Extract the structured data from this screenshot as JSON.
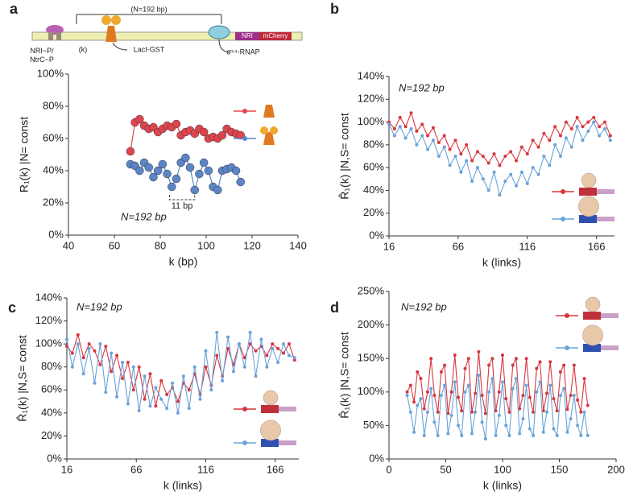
{
  "diagram": {
    "spacing": "(N=192 bp)",
    "activator": "NRI~P/\nNtrC~P",
    "offset": "(k)",
    "repressor": "LacI-GST",
    "polymerase": "σ⁵⁴-RNAP",
    "gene1": "NRI",
    "gene2": "mCherry"
  },
  "chart_data": [
    {
      "type": "line",
      "panel_label": "a",
      "y_label": "R₁(k) |N= const",
      "x_label": "k (bp)",
      "annotation": "N=192 bp",
      "bracket_label": "11 bp",
      "x": [
        67,
        69,
        71,
        73,
        75,
        77,
        79,
        81,
        83,
        85,
        87,
        89,
        91,
        93,
        95,
        97,
        99,
        101,
        103,
        105,
        107,
        109,
        111,
        113,
        115
      ],
      "series": [
        {
          "color": "#e0454b",
          "values": [
            52,
            70,
            72,
            68,
            66,
            67,
            64,
            66,
            68,
            67,
            69,
            62,
            64,
            65,
            63,
            66,
            64,
            60,
            61,
            60,
            62,
            66,
            64,
            63,
            62
          ]
        },
        {
          "color": "#5b85c4",
          "values": [
            44,
            43,
            40,
            45,
            42,
            36,
            40,
            44,
            38,
            30,
            35,
            45,
            48,
            42,
            28,
            38,
            45,
            40,
            30,
            28,
            40,
            41,
            42,
            40,
            33
          ]
        }
      ],
      "xlim": [
        40,
        140
      ],
      "xticks": [
        40,
        60,
        80,
        100,
        120,
        140
      ],
      "ylim": [
        0,
        100
      ],
      "yticks": [
        {
          "value": 0,
          "label": "0%"
        },
        {
          "value": 20,
          "label": "20%"
        },
        {
          "value": 40,
          "label": "40%"
        },
        {
          "value": 60,
          "label": "60%"
        },
        {
          "value": 80,
          "label": "80%"
        },
        {
          "value": 100,
          "label": "100%"
        }
      ]
    },
    {
      "type": "line",
      "panel_label": "b",
      "y_label": "R̂₁(k) |N,S= const",
      "x_label": "k (links)",
      "annotation": "N=192 bp",
      "x": [
        16,
        20,
        24,
        28,
        32,
        36,
        40,
        44,
        48,
        52,
        56,
        60,
        64,
        68,
        72,
        76,
        80,
        84,
        88,
        92,
        96,
        100,
        104,
        108,
        112,
        116,
        120,
        124,
        128,
        132,
        136,
        140,
        144,
        148,
        152,
        156,
        160,
        164,
        168,
        172,
        176
      ],
      "series": [
        {
          "color": "#d9363e",
          "values": [
            100,
            94,
            104,
            96,
            108,
            92,
            98,
            88,
            95,
            82,
            88,
            76,
            84,
            72,
            80,
            66,
            74,
            70,
            64,
            72,
            62,
            70,
            74,
            66,
            78,
            72,
            84,
            78,
            90,
            84,
            96,
            88,
            100,
            94,
            104,
            96,
            100,
            104,
            96,
            100,
            88
          ]
        },
        {
          "color": "#6aa3d8",
          "values": [
            98,
            88,
            96,
            86,
            94,
            80,
            88,
            76,
            84,
            70,
            78,
            62,
            70,
            56,
            66,
            48,
            60,
            50,
            40,
            56,
            36,
            48,
            54,
            44,
            56,
            46,
            60,
            54,
            70,
            62,
            80,
            70,
            86,
            78,
            96,
            84,
            92,
            100,
            88,
            94,
            84
          ]
        }
      ],
      "xlim": [
        16,
        179
      ],
      "xticks": [
        16,
        66,
        116,
        166
      ],
      "ylim": [
        0,
        140
      ],
      "yticks": [
        {
          "value": 0,
          "label": "0%"
        },
        {
          "value": 20,
          "label": "20%"
        },
        {
          "value": 40,
          "label": "40%"
        },
        {
          "value": 60,
          "label": "60%"
        },
        {
          "value": 80,
          "label": "80%"
        },
        {
          "value": 100,
          "label": "100%"
        },
        {
          "value": 120,
          "label": "120%"
        },
        {
          "value": 140,
          "label": "140%"
        }
      ]
    },
    {
      "type": "line",
      "panel_label": "c",
      "y_label": "R̂₁(k) |N,S= const",
      "x_label": "k (links)",
      "annotation": "N=192 bp",
      "x": [
        16,
        20,
        24,
        28,
        32,
        36,
        40,
        44,
        48,
        52,
        56,
        60,
        64,
        68,
        72,
        76,
        80,
        84,
        88,
        92,
        96,
        100,
        104,
        108,
        112,
        116,
        120,
        124,
        128,
        132,
        136,
        140,
        144,
        148,
        152,
        156,
        160,
        164,
        168,
        172,
        176,
        180
      ],
      "series": [
        {
          "color": "#d9363e",
          "values": [
            98,
            92,
            108,
            88,
            100,
            94,
            82,
            98,
            76,
            90,
            70,
            84,
            60,
            80,
            52,
            74,
            46,
            68,
            56,
            62,
            50,
            66,
            60,
            74,
            56,
            80,
            64,
            90,
            72,
            96,
            82,
            100,
            88,
            100,
            94,
            98,
            90,
            100,
            96,
            92,
            100,
            86
          ]
        },
        {
          "color": "#6aa3d8",
          "values": [
            104,
            80,
            100,
            74,
            96,
            66,
            100,
            58,
            92,
            54,
            84,
            48,
            80,
            42,
            72,
            46,
            62,
            52,
            44,
            66,
            40,
            72,
            44,
            80,
            52,
            94,
            60,
            110,
            68,
            106,
            76,
            100,
            80,
            110,
            72,
            104,
            80,
            96,
            84,
            100,
            90,
            88
          ]
        }
      ],
      "xlim": [
        16,
        183
      ],
      "xticks": [
        16,
        66,
        116,
        166
      ],
      "ylim": [
        0,
        140
      ],
      "yticks": [
        {
          "value": 0,
          "label": "0%"
        },
        {
          "value": 20,
          "label": "20%"
        },
        {
          "value": 40,
          "label": "40%"
        },
        {
          "value": 60,
          "label": "60%"
        },
        {
          "value": 80,
          "label": "80%"
        },
        {
          "value": 100,
          "label": "100%"
        },
        {
          "value": 120,
          "label": "120%"
        },
        {
          "value": 140,
          "label": "140%"
        }
      ]
    },
    {
      "type": "line",
      "panel_label": "d",
      "y_label": "R̂₁(k) |N,S= const",
      "x_label": "k (links)",
      "annotation": "N=192 bp",
      "x": [
        16,
        19,
        22,
        25,
        28,
        31,
        34,
        37,
        40,
        43,
        46,
        49,
        52,
        55,
        58,
        61,
        64,
        67,
        70,
        73,
        76,
        79,
        82,
        85,
        88,
        91,
        94,
        97,
        100,
        103,
        106,
        109,
        112,
        115,
        118,
        121,
        124,
        127,
        130,
        133,
        136,
        139,
        142,
        145,
        148,
        151,
        154,
        157,
        160,
        163,
        166,
        169,
        172,
        175
      ],
      "series": [
        {
          "color": "#d9363e",
          "values": [
            100,
            110,
            85,
            130,
            120,
            75,
            100,
            150,
            95,
            70,
            130,
            140,
            68,
            100,
            155,
            92,
            72,
            135,
            150,
            70,
            98,
            160,
            95,
            68,
            140,
            150,
            72,
            100,
            155,
            90,
            70,
            140,
            150,
            75,
            95,
            150,
            92,
            70,
            135,
            145,
            72,
            98,
            145,
            90,
            72,
            130,
            140,
            74,
            95,
            140,
            88,
            70,
            120,
            80
          ]
        },
        {
          "color": "#6aa3d8",
          "values": [
            95,
            70,
            40,
            80,
            90,
            35,
            70,
            105,
            55,
            35,
            95,
            110,
            38,
            65,
            115,
            50,
            35,
            100,
            110,
            38,
            70,
            125,
            55,
            30,
            100,
            120,
            35,
            65,
            115,
            50,
            35,
            105,
            120,
            38,
            60,
            110,
            45,
            35,
            100,
            115,
            40,
            70,
            110,
            45,
            35,
            95,
            105,
            40,
            60,
            95,
            50,
            35,
            70,
            35
          ]
        }
      ],
      "xlim": [
        0,
        200
      ],
      "xticks": [
        0,
        50,
        100,
        150,
        200
      ],
      "ylim": [
        0,
        250
      ],
      "yticks": [
        {
          "value": 0,
          "label": "0%"
        },
        {
          "value": 50,
          "label": "50%"
        },
        {
          "value": 100,
          "label": "100%"
        },
        {
          "value": 150,
          "label": "150%"
        },
        {
          "value": 200,
          "label": "200%"
        },
        {
          "value": 250,
          "label": "250%"
        }
      ]
    }
  ]
}
